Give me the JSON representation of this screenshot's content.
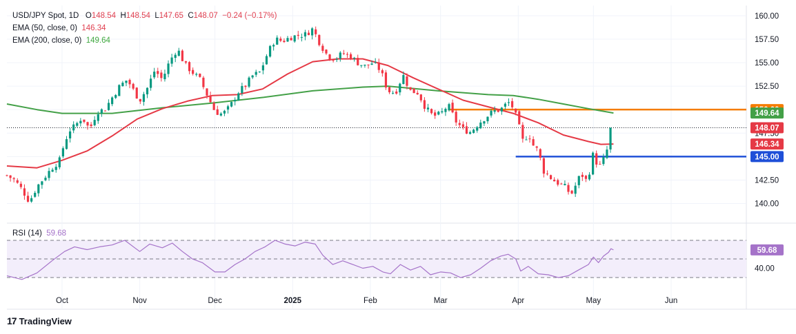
{
  "header": {
    "symbol": "USD/JPY Spot, 1D",
    "open_label": "O",
    "open": "148.54",
    "high_label": "H",
    "high": "148.54",
    "low_label": "L",
    "low": "147.65",
    "close_label": "C",
    "close": "148.07",
    "change": "−0.24 (−0.17%)",
    "ema50_label": "EMA (50, close, 0)",
    "ema50_value": "146.34",
    "ema200_label": "EMA (200, close, 0)",
    "ema200_value": "149.64"
  },
  "rsi": {
    "label": "RSI (14)",
    "value": "59.68"
  },
  "branding": {
    "logo": "17",
    "name": "TradingView"
  },
  "chart_data": [
    {
      "type": "candlestick",
      "title": "USD/JPY Spot, 1D",
      "ylim": [
        138.5,
        160.5
      ],
      "y_ticks": [
        "160.00",
        "157.50",
        "155.00",
        "152.50",
        "150.00",
        "147.50",
        "145.00",
        "142.50",
        "140.00"
      ],
      "y_tick_values": [
        160,
        157.5,
        155,
        152.5,
        150,
        147.5,
        145,
        142.5,
        140
      ],
      "x_ticks": [
        "Oct",
        "Nov",
        "Dec",
        "2025",
        "Feb",
        "Mar",
        "Apr",
        "May",
        "Jun"
      ],
      "x_tick_days": [
        0,
        31,
        61,
        92,
        123,
        151,
        182,
        212,
        243
      ],
      "x_range_days": [
        -22,
        273
      ],
      "data_end_day": 220,
      "close_path": [
        [
          -22,
          143.0
        ],
        [
          -19,
          142.5
        ],
        [
          -16,
          141.5
        ],
        [
          -13,
          140.2
        ],
        [
          -10,
          141.8
        ],
        [
          -7,
          142.8
        ],
        [
          -4,
          143.8
        ],
        [
          -1,
          144.6
        ],
        [
          1,
          146.5
        ],
        [
          3,
          147.8
        ],
        [
          5,
          148.2
        ],
        [
          8,
          149.2
        ],
        [
          11,
          147.9
        ],
        [
          14,
          149.8
        ],
        [
          17,
          150.0
        ],
        [
          20,
          151.3
        ],
        [
          23,
          152.5
        ],
        [
          26,
          153.2
        ],
        [
          29,
          151.8
        ],
        [
          31,
          151.0
        ],
        [
          34,
          152.3
        ],
        [
          37,
          154.2
        ],
        [
          40,
          153.2
        ],
        [
          43,
          155.2
        ],
        [
          46,
          156.5
        ],
        [
          49,
          154.8
        ],
        [
          52,
          154.0
        ],
        [
          55,
          153.2
        ],
        [
          58,
          151.5
        ],
        [
          61,
          149.8
        ],
        [
          64,
          149.5
        ],
        [
          67,
          150.3
        ],
        [
          70,
          151.8
        ],
        [
          73,
          152.5
        ],
        [
          76,
          153.6
        ],
        [
          79,
          154.0
        ],
        [
          82,
          156.0
        ],
        [
          85,
          157.5
        ],
        [
          88,
          157.3
        ],
        [
          91,
          157.7
        ],
        [
          94,
          157.9
        ],
        [
          97,
          158.0
        ],
        [
          100,
          158.6
        ],
        [
          103,
          157.0
        ],
        [
          106,
          155.7
        ],
        [
          109,
          155.4
        ],
        [
          112,
          156.0
        ],
        [
          115,
          155.7
        ],
        [
          118,
          155.0
        ],
        [
          121,
          154.6
        ],
        [
          124,
          155.0
        ],
        [
          127,
          154.2
        ],
        [
          130,
          152.0
        ],
        [
          133,
          151.8
        ],
        [
          136,
          153.7
        ],
        [
          139,
          152.0
        ],
        [
          142,
          151.8
        ],
        [
          145,
          150.2
        ],
        [
          148,
          149.3
        ],
        [
          151,
          149.5
        ],
        [
          154,
          150.5
        ],
        [
          157,
          148.8
        ],
        [
          160,
          147.9
        ],
        [
          163,
          147.6
        ],
        [
          166,
          148.5
        ],
        [
          169,
          149.2
        ],
        [
          172,
          149.8
        ],
        [
          175,
          150.0
        ],
        [
          178,
          150.8
        ],
        [
          180,
          150.2
        ],
        [
          182,
          148.5
        ],
        [
          184,
          146.5
        ],
        [
          186,
          147.5
        ],
        [
          188,
          146.2
        ],
        [
          190,
          145.6
        ],
        [
          192,
          143.5
        ],
        [
          194,
          143.0
        ],
        [
          196,
          142.5
        ],
        [
          199,
          142.0
        ],
        [
          201,
          141.7
        ],
        [
          203,
          140.9
        ],
        [
          205,
          142.0
        ],
        [
          207,
          143.2
        ],
        [
          209,
          142.5
        ],
        [
          211,
          143.8
        ],
        [
          212,
          145.5
        ],
        [
          213,
          144.3
        ],
        [
          214,
          144.8
        ],
        [
          215,
          143.5
        ],
        [
          216,
          144.7
        ],
        [
          217,
          145.5
        ],
        [
          218,
          146.0
        ],
        [
          219,
          148.4
        ],
        [
          220,
          148.07
        ]
      ],
      "ema50_path": [
        [
          -22,
          144.0
        ],
        [
          -10,
          143.8
        ],
        [
          0,
          144.6
        ],
        [
          10,
          145.6
        ],
        [
          20,
          147.2
        ],
        [
          30,
          149.0
        ],
        [
          40,
          150.1
        ],
        [
          50,
          150.9
        ],
        [
          60,
          151.5
        ],
        [
          70,
          151.6
        ],
        [
          80,
          152.2
        ],
        [
          90,
          153.8
        ],
        [
          100,
          155.1
        ],
        [
          110,
          155.4
        ],
        [
          120,
          155.4
        ],
        [
          130,
          154.7
        ],
        [
          140,
          153.4
        ],
        [
          150,
          152.2
        ],
        [
          160,
          151.0
        ],
        [
          170,
          150.3
        ],
        [
          180,
          149.6
        ],
        [
          190,
          148.6
        ],
        [
          200,
          147.3
        ],
        [
          210,
          146.6
        ],
        [
          215,
          146.3
        ],
        [
          220,
          146.34
        ]
      ],
      "ema200_path": [
        [
          -22,
          150.6
        ],
        [
          -10,
          150.0
        ],
        [
          0,
          149.6
        ],
        [
          20,
          149.6
        ],
        [
          40,
          150.2
        ],
        [
          60,
          150.7
        ],
        [
          80,
          151.3
        ],
        [
          100,
          152.0
        ],
        [
          120,
          152.4
        ],
        [
          130,
          152.5
        ],
        [
          150,
          152.0
        ],
        [
          170,
          151.6
        ],
        [
          180,
          151.5
        ],
        [
          190,
          151.1
        ],
        [
          200,
          150.6
        ],
        [
          210,
          150.1
        ],
        [
          220,
          149.64
        ]
      ],
      "horizontal_levels": [
        {
          "label": "150.00",
          "value": 150.0,
          "color": "#f57c00",
          "from_day": 154
        },
        {
          "label": "145.00",
          "value": 145.0,
          "color": "#1e4fd8",
          "from_day": 181
        }
      ],
      "price_tags": [
        {
          "label": "150.00",
          "value": 150.0,
          "color": "#f57c00"
        },
        {
          "label": "149.64",
          "value": 149.64,
          "color": "#43a047"
        },
        {
          "label": "148.07",
          "value": 148.07,
          "color": "#e53945"
        },
        {
          "label": "146.34",
          "value": 146.34,
          "color": "#e53945"
        },
        {
          "label": "145.00",
          "value": 145.0,
          "color": "#1e4fd8"
        }
      ],
      "colors": {
        "up": "#089981",
        "down": "#f23645",
        "ema50": "#e53945",
        "ema200": "#43a047"
      }
    },
    {
      "type": "line",
      "title": "RSI (14)",
      "ylim": [
        16,
        84
      ],
      "levels": [
        70,
        50,
        30
      ],
      "y_ticks": [
        "40.00"
      ],
      "y_tick_values": [
        40
      ],
      "value_tag": "59.68",
      "path": [
        [
          -22,
          32
        ],
        [
          -16,
          28
        ],
        [
          -10,
          35
        ],
        [
          -4,
          48
        ],
        [
          1,
          58
        ],
        [
          5,
          63
        ],
        [
          10,
          60
        ],
        [
          15,
          63
        ],
        [
          20,
          65
        ],
        [
          25,
          70
        ],
        [
          29,
          62
        ],
        [
          31,
          58
        ],
        [
          35,
          66
        ],
        [
          40,
          62
        ],
        [
          44,
          67
        ],
        [
          48,
          58
        ],
        [
          52,
          50
        ],
        [
          56,
          46
        ],
        [
          61,
          36
        ],
        [
          65,
          36
        ],
        [
          69,
          44
        ],
        [
          73,
          50
        ],
        [
          77,
          58
        ],
        [
          81,
          63
        ],
        [
          85,
          70
        ],
        [
          89,
          66
        ],
        [
          93,
          64
        ],
        [
          97,
          68
        ],
        [
          101,
          66
        ],
        [
          104,
          54
        ],
        [
          108,
          44
        ],
        [
          112,
          48
        ],
        [
          116,
          44
        ],
        [
          120,
          40
        ],
        [
          124,
          42
        ],
        [
          128,
          36
        ],
        [
          131,
          34
        ],
        [
          135,
          44
        ],
        [
          139,
          38
        ],
        [
          143,
          42
        ],
        [
          147,
          33
        ],
        [
          151,
          36
        ],
        [
          155,
          35
        ],
        [
          159,
          30
        ],
        [
          163,
          33
        ],
        [
          167,
          40
        ],
        [
          171,
          48
        ],
        [
          175,
          53
        ],
        [
          178,
          55
        ],
        [
          181,
          50
        ],
        [
          183,
          37
        ],
        [
          186,
          42
        ],
        [
          190,
          34
        ],
        [
          194,
          33
        ],
        [
          198,
          30
        ],
        [
          202,
          32
        ],
        [
          206,
          38
        ],
        [
          210,
          44
        ],
        [
          212,
          52
        ],
        [
          214,
          46
        ],
        [
          216,
          53
        ],
        [
          218,
          57
        ],
        [
          219,
          61
        ],
        [
          220,
          59.68
        ]
      ],
      "line_color": "#a573c9"
    }
  ]
}
